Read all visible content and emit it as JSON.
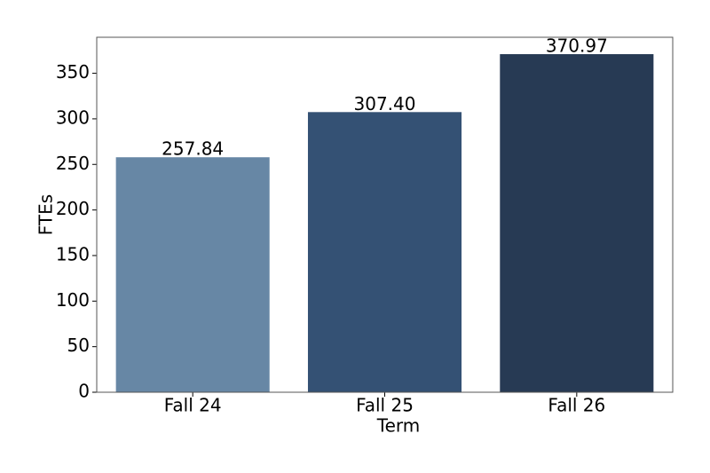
{
  "chart_data": {
    "type": "bar",
    "x_label": "Term",
    "y_label": "FTEs",
    "categories": [
      "Fall 24",
      "Fall 25",
      "Fall 26"
    ],
    "values": [
      257.84,
      307.4,
      370.97
    ],
    "value_labels": [
      "257.84",
      "307.40",
      "370.97"
    ],
    "colors": [
      "#6787a5",
      "#345174",
      "#273a54"
    ],
    "ylim": [
      0,
      389.5
    ],
    "yticks": [
      0,
      50,
      100,
      150,
      200,
      250,
      300,
      350
    ],
    "grid": false
  }
}
